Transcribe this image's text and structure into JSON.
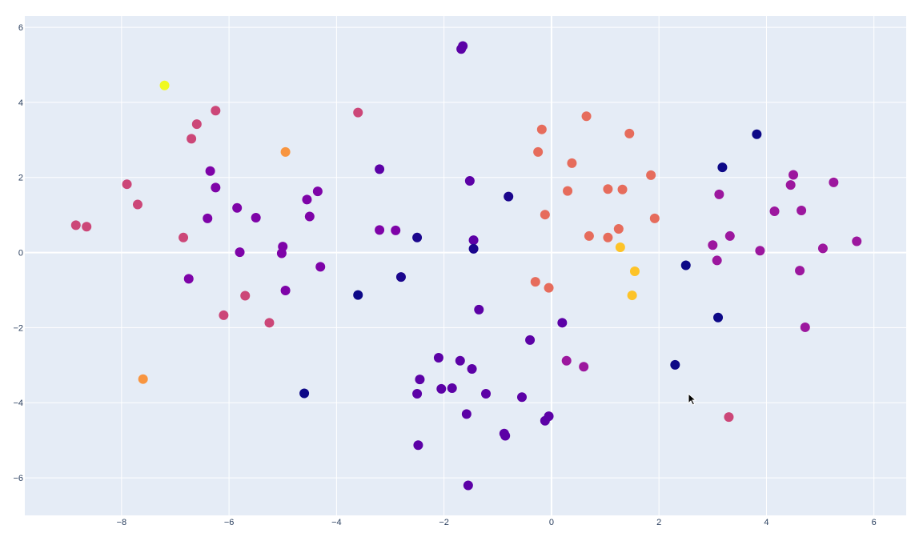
{
  "chart_data": {
    "type": "scatter",
    "title": "",
    "xlabel": "",
    "ylabel": "",
    "xlim": [
      -9.8,
      6.6
    ],
    "ylim": [
      -7.0,
      6.3
    ],
    "grid": true,
    "background": "#e5ecf6",
    "colorscale": "plasma",
    "x_ticks": [
      -8,
      -6,
      -4,
      -2,
      0,
      2,
      4,
      6
    ],
    "x_tick_labels": [
      "−8",
      "−6",
      "−4",
      "−2",
      "0",
      "2",
      "4",
      "6"
    ],
    "y_ticks": [
      -6,
      -4,
      -2,
      0,
      2,
      4,
      6
    ],
    "y_tick_labels": [
      "−6",
      "−4",
      "−2",
      "0",
      "2",
      "4",
      "6"
    ],
    "points": [
      {
        "x": -7.2,
        "y": 4.45,
        "color": "#f0f921"
      },
      {
        "x": -6.25,
        "y": 3.78,
        "color": "#cc4778"
      },
      {
        "x": -6.6,
        "y": 3.42,
        "color": "#cc4778"
      },
      {
        "x": -6.7,
        "y": 3.03,
        "color": "#cc4778"
      },
      {
        "x": -7.9,
        "y": 1.82,
        "color": "#cc4778"
      },
      {
        "x": -7.7,
        "y": 1.28,
        "color": "#cc4778"
      },
      {
        "x": -8.85,
        "y": 0.73,
        "color": "#cc4778"
      },
      {
        "x": -8.65,
        "y": 0.69,
        "color": "#cc4778"
      },
      {
        "x": -6.35,
        "y": 2.17,
        "color": "#7e03a8"
      },
      {
        "x": -6.25,
        "y": 1.73,
        "color": "#7e03a8"
      },
      {
        "x": -6.4,
        "y": 0.91,
        "color": "#7e03a8"
      },
      {
        "x": -6.85,
        "y": 0.4,
        "color": "#cc4778"
      },
      {
        "x": -6.75,
        "y": -0.7,
        "color": "#7e03a8"
      },
      {
        "x": -5.85,
        "y": 1.19,
        "color": "#7e03a8"
      },
      {
        "x": -5.5,
        "y": 0.93,
        "color": "#7e03a8"
      },
      {
        "x": -5.8,
        "y": 0.01,
        "color": "#7e03a8"
      },
      {
        "x": -5.7,
        "y": -1.15,
        "color": "#cc4778"
      },
      {
        "x": -6.1,
        "y": -1.67,
        "color": "#cc4778"
      },
      {
        "x": -5.25,
        "y": -1.87,
        "color": "#cc4778"
      },
      {
        "x": -7.6,
        "y": -3.37,
        "color": "#f89540"
      },
      {
        "x": -4.95,
        "y": 2.68,
        "color": "#f89540"
      },
      {
        "x": -4.55,
        "y": 1.41,
        "color": "#7e03a8"
      },
      {
        "x": -4.35,
        "y": 1.63,
        "color": "#7e03a8"
      },
      {
        "x": -4.5,
        "y": 0.96,
        "color": "#7e03a8"
      },
      {
        "x": -5.0,
        "y": 0.16,
        "color": "#7e03a8"
      },
      {
        "x": -5.02,
        "y": -0.02,
        "color": "#7e03a8"
      },
      {
        "x": -4.3,
        "y": -0.38,
        "color": "#7e03a8"
      },
      {
        "x": -4.95,
        "y": -1.01,
        "color": "#7e03a8"
      },
      {
        "x": -4.6,
        "y": -3.75,
        "color": "#0d0887"
      },
      {
        "x": -3.6,
        "y": -1.13,
        "color": "#0d0887"
      },
      {
        "x": -3.6,
        "y": 3.73,
        "color": "#cc4778"
      },
      {
        "x": -3.2,
        "y": 2.22,
        "color": "#5c01a6"
      },
      {
        "x": -3.2,
        "y": 0.6,
        "color": "#7e03a8"
      },
      {
        "x": -2.9,
        "y": 0.59,
        "color": "#7e03a8"
      },
      {
        "x": -2.8,
        "y": -0.65,
        "color": "#1b068d"
      },
      {
        "x": -2.5,
        "y": 0.4,
        "color": "#1b068d"
      },
      {
        "x": -1.65,
        "y": 5.5,
        "color": "#5c01a6"
      },
      {
        "x": -1.68,
        "y": 5.42,
        "color": "#5c01a6"
      },
      {
        "x": -1.52,
        "y": 1.91,
        "color": "#5c01a6"
      },
      {
        "x": -1.45,
        "y": 0.33,
        "color": "#5c01a6"
      },
      {
        "x": -1.45,
        "y": 0.1,
        "color": "#1b068d"
      },
      {
        "x": -1.35,
        "y": -1.52,
        "color": "#5c01a6"
      },
      {
        "x": -0.8,
        "y": 1.49,
        "color": "#1b068d"
      },
      {
        "x": -0.4,
        "y": -2.33,
        "color": "#5c01a6"
      },
      {
        "x": -2.1,
        "y": -2.8,
        "color": "#5c01a6"
      },
      {
        "x": -1.7,
        "y": -2.88,
        "color": "#5c01a6"
      },
      {
        "x": -1.48,
        "y": -3.1,
        "color": "#5c01a6"
      },
      {
        "x": -2.45,
        "y": -3.38,
        "color": "#5c01a6"
      },
      {
        "x": -2.05,
        "y": -3.63,
        "color": "#5c01a6"
      },
      {
        "x": -1.85,
        "y": -3.61,
        "color": "#5c01a6"
      },
      {
        "x": -2.5,
        "y": -3.76,
        "color": "#5c01a6"
      },
      {
        "x": -1.22,
        "y": -3.76,
        "color": "#5c01a6"
      },
      {
        "x": -0.55,
        "y": -3.85,
        "color": "#5c01a6"
      },
      {
        "x": -1.58,
        "y": -4.3,
        "color": "#5c01a6"
      },
      {
        "x": -0.12,
        "y": -4.48,
        "color": "#5c01a6"
      },
      {
        "x": -0.05,
        "y": -4.36,
        "color": "#5c01a6"
      },
      {
        "x": -0.88,
        "y": -4.82,
        "color": "#5c01a6"
      },
      {
        "x": -0.86,
        "y": -4.88,
        "color": "#5c01a6"
      },
      {
        "x": -2.48,
        "y": -5.13,
        "color": "#5c01a6"
      },
      {
        "x": -1.55,
        "y": -6.2,
        "color": "#5c01a6"
      },
      {
        "x": 0.2,
        "y": -1.87,
        "color": "#5c01a6"
      },
      {
        "x": -0.18,
        "y": 3.28,
        "color": "#e66c5c"
      },
      {
        "x": 0.65,
        "y": 3.63,
        "color": "#e66c5c"
      },
      {
        "x": -0.25,
        "y": 2.68,
        "color": "#e66c5c"
      },
      {
        "x": 0.38,
        "y": 2.38,
        "color": "#e66c5c"
      },
      {
        "x": 0.3,
        "y": 1.64,
        "color": "#e66c5c"
      },
      {
        "x": -0.12,
        "y": 1.01,
        "color": "#e66c5c"
      },
      {
        "x": 0.7,
        "y": 0.44,
        "color": "#e66c5c"
      },
      {
        "x": -0.3,
        "y": -0.78,
        "color": "#e66c5c"
      },
      {
        "x": -0.05,
        "y": -0.94,
        "color": "#e66c5c"
      },
      {
        "x": 1.45,
        "y": 3.17,
        "color": "#e66c5c"
      },
      {
        "x": 1.85,
        "y": 2.06,
        "color": "#e66c5c"
      },
      {
        "x": 1.05,
        "y": 1.69,
        "color": "#e66c5c"
      },
      {
        "x": 1.32,
        "y": 1.68,
        "color": "#e66c5c"
      },
      {
        "x": 1.92,
        "y": 0.91,
        "color": "#e66c5c"
      },
      {
        "x": 1.25,
        "y": 0.63,
        "color": "#e66c5c"
      },
      {
        "x": 1.05,
        "y": 0.4,
        "color": "#e66c5c"
      },
      {
        "x": 1.28,
        "y": 0.14,
        "color": "#fdc328"
      },
      {
        "x": 1.55,
        "y": -0.5,
        "color": "#fdc328"
      },
      {
        "x": 1.5,
        "y": -1.14,
        "color": "#fdc328"
      },
      {
        "x": 0.28,
        "y": -2.88,
        "color": "#9c179e"
      },
      {
        "x": 0.6,
        "y": -3.04,
        "color": "#9c179e"
      },
      {
        "x": 2.5,
        "y": -0.34,
        "color": "#0d0887"
      },
      {
        "x": 2.3,
        "y": -2.99,
        "color": "#0d0887"
      },
      {
        "x": 3.1,
        "y": -1.73,
        "color": "#0d0887"
      },
      {
        "x": 3.82,
        "y": 3.15,
        "color": "#0d0887"
      },
      {
        "x": 3.18,
        "y": 2.27,
        "color": "#0d0887"
      },
      {
        "x": 3.12,
        "y": 1.55,
        "color": "#9c179e"
      },
      {
        "x": 3.32,
        "y": 0.44,
        "color": "#9c179e"
      },
      {
        "x": 3.0,
        "y": 0.2,
        "color": "#9c179e"
      },
      {
        "x": 3.08,
        "y": -0.21,
        "color": "#9c179e"
      },
      {
        "x": 3.88,
        "y": 0.05,
        "color": "#9c179e"
      },
      {
        "x": 3.3,
        "y": -4.38,
        "color": "#cc4778"
      },
      {
        "x": 4.5,
        "y": 2.07,
        "color": "#9c179e"
      },
      {
        "x": 4.45,
        "y": 1.8,
        "color": "#9c179e"
      },
      {
        "x": 5.25,
        "y": 1.87,
        "color": "#9c179e"
      },
      {
        "x": 4.15,
        "y": 1.1,
        "color": "#9c179e"
      },
      {
        "x": 4.65,
        "y": 1.12,
        "color": "#9c179e"
      },
      {
        "x": 5.05,
        "y": 0.11,
        "color": "#9c179e"
      },
      {
        "x": 5.68,
        "y": 0.3,
        "color": "#9c179e"
      },
      {
        "x": 4.62,
        "y": -0.48,
        "color": "#9c179e"
      },
      {
        "x": 4.72,
        "y": -1.99,
        "color": "#9c179e"
      }
    ]
  }
}
